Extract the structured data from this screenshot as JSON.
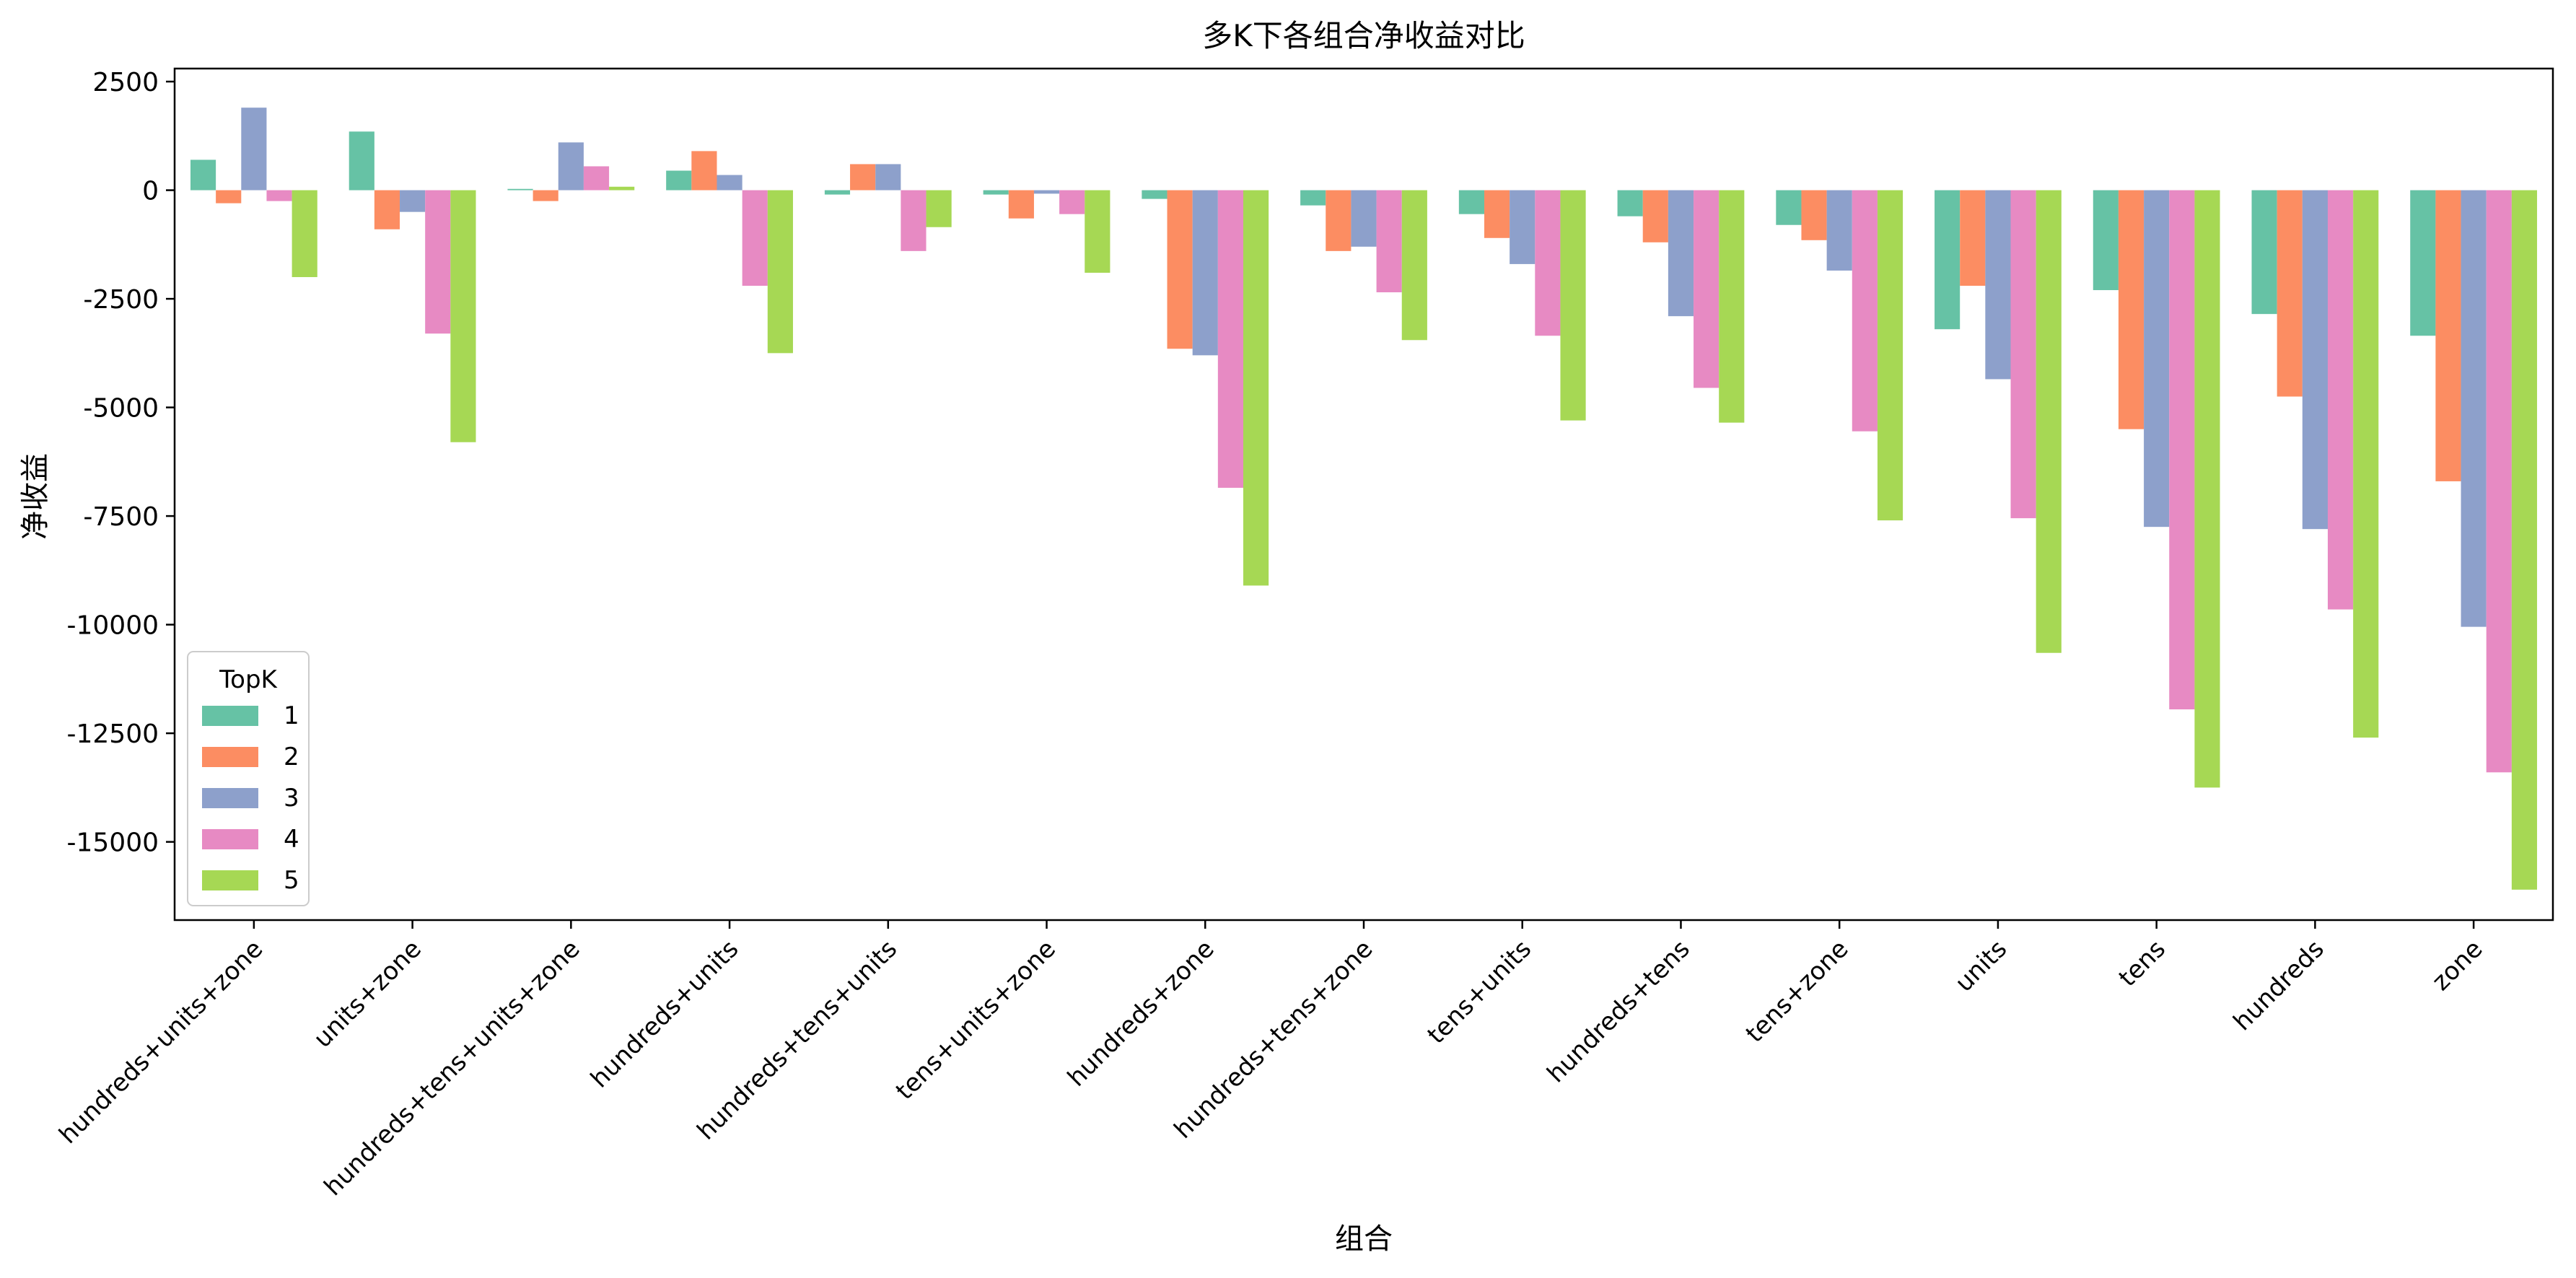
{
  "chart_data": {
    "type": "bar",
    "title": "多K下各组合净收益对比",
    "xlabel": "组合",
    "ylabel": "净收益",
    "ylim": [
      -16800,
      2800
    ],
    "yticks": [
      2500,
      0,
      -2500,
      -5000,
      -7500,
      -10000,
      -12500,
      -15000
    ],
    "grid": false,
    "legend": {
      "title": "TopK",
      "placement": "lower-left"
    },
    "categories": [
      "hundreds+units+zone",
      "units+zone",
      "hundreds+tens+units+zone",
      "hundreds+units",
      "hundreds+tens+units",
      "tens+units+zone",
      "hundreds+zone",
      "hundreds+tens+zone",
      "tens+units",
      "hundreds+tens",
      "tens+zone",
      "units",
      "tens",
      "hundreds",
      "zone"
    ],
    "series": [
      {
        "name": "1",
        "color": "#66c2a5",
        "values": [
          700,
          1350,
          30,
          450,
          -100,
          -100,
          -200,
          -350,
          -550,
          -600,
          -800,
          -3200,
          -2300,
          -2850,
          -3350
        ]
      },
      {
        "name": "2",
        "color": "#fc8d62",
        "values": [
          -300,
          -900,
          -250,
          900,
          600,
          -650,
          -3650,
          -1400,
          -1100,
          -1200,
          -1150,
          -2200,
          -5500,
          -4750,
          -6700
        ]
      },
      {
        "name": "3",
        "color": "#8da0cb",
        "values": [
          1900,
          -500,
          1100,
          350,
          600,
          -80,
          -3800,
          -1300,
          -1700,
          -2900,
          -1850,
          -4350,
          -7750,
          -7800,
          -10050
        ]
      },
      {
        "name": "4",
        "color": "#e78ac3",
        "values": [
          -250,
          -3300,
          550,
          -2200,
          -1400,
          -550,
          -6850,
          -2350,
          -3350,
          -4550,
          -5550,
          -7550,
          -11950,
          -9650,
          -13400
        ]
      },
      {
        "name": "5",
        "color": "#a6d854",
        "values": [
          -2000,
          -5800,
          80,
          -3750,
          -850,
          -1900,
          -9100,
          -3450,
          -5300,
          -5350,
          -7600,
          -10650,
          -13750,
          -12600,
          -16100
        ]
      }
    ]
  }
}
